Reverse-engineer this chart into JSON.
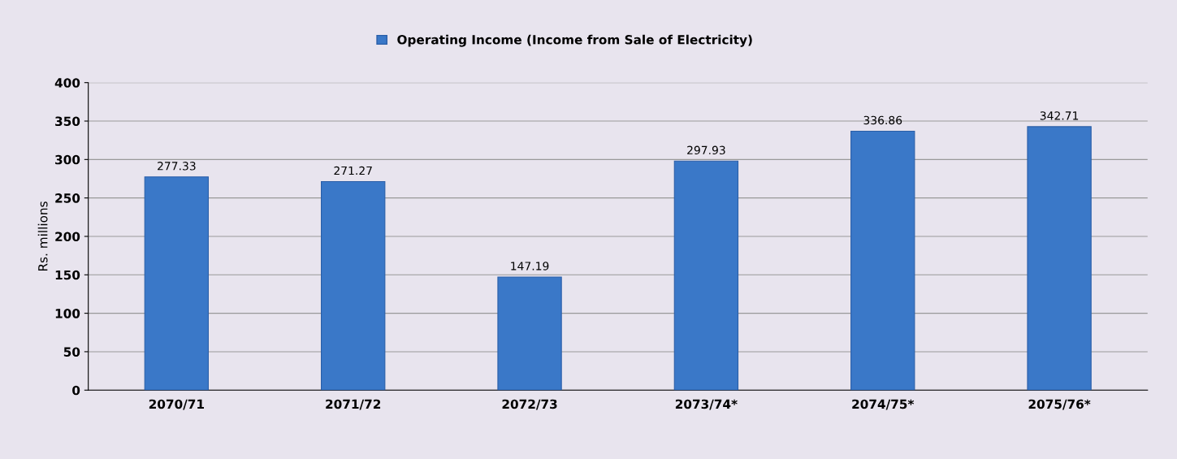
{
  "chart_data": {
    "type": "bar",
    "ylabel": "Rs. millions",
    "categories": [
      "2070/71",
      "2071/72",
      "2072/73",
      "2073/74*",
      "2074/75*",
      "2075/76*"
    ],
    "series": [
      {
        "name": "Operating Income (Income from Sale of Electricity)",
        "color": "#3a78c8",
        "values": [
          277.33,
          271.27,
          147.19,
          297.93,
          336.86,
          342.71
        ]
      }
    ],
    "ylim": [
      0,
      400
    ],
    "yticks": [
      0,
      50,
      100,
      150,
      200,
      250,
      300,
      350,
      400
    ],
    "grid": "y",
    "legend": "top",
    "data_labels": true
  }
}
